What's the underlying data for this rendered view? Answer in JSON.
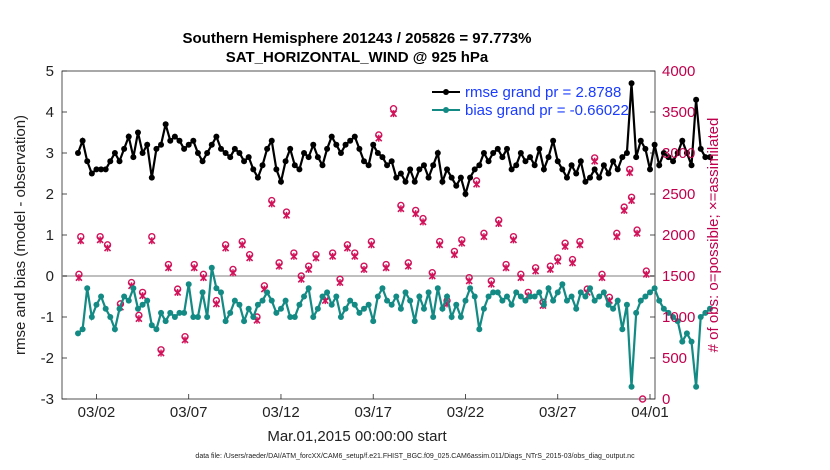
{
  "chart_data": {
    "type": "line",
    "title_line1": "Southern Hemisphere 201243 / 205826 = 97.773%",
    "title_line2": "SAT_HORIZONTAL_WIND @ 925 hPa",
    "xlabel": "Mar.01,2015 00:00:00 start",
    "ylabel_left": "rmse and bias (model - observation)",
    "ylabel_right": "# of obs: o=possible; ×=assimilated",
    "footnote": "data file: /Users/raeder/DAI/ATM_forcXX/CAM6_setup/f.e21.FHIST_BGC.f09_025.CAM6assim.011/Diags_NTrS_2015-03/obs_diag_output.nc",
    "x_ticks": [
      {
        "label": "03/02",
        "day": 2
      },
      {
        "label": "03/07",
        "day": 7
      },
      {
        "label": "03/12",
        "day": 12
      },
      {
        "label": "03/17",
        "day": 17
      },
      {
        "label": "03/22",
        "day": 22
      },
      {
        "label": "03/27",
        "day": 27
      },
      {
        "label": "04/01",
        "day": 32
      }
    ],
    "xlim": [
      1,
      32
    ],
    "ylim_left": [
      -3,
      5
    ],
    "ylim_right": [
      0,
      4000
    ],
    "y_ticks_left": [
      "-3",
      "-2",
      "-1",
      "0",
      "1",
      "2",
      "3",
      "4",
      "5"
    ],
    "y_ticks_right": [
      "0",
      "500",
      "1000",
      "1500",
      "2000",
      "2500",
      "3000",
      "3500",
      "4000"
    ],
    "colors": {
      "rmse": "#000000",
      "bias": "#138a84",
      "obs": "#d1135a",
      "zero_line": "#bfbfbf",
      "legend_text": "#1a3cff"
    },
    "series": [
      {
        "name": "rmse grand pr = 2.8788",
        "start_day": 1.0,
        "step_days": 0.25,
        "values": [
          3.0,
          3.3,
          2.8,
          2.5,
          2.6,
          2.6,
          2.6,
          2.8,
          3.0,
          2.8,
          3.1,
          3.4,
          2.9,
          3.5,
          3.0,
          3.2,
          2.4,
          3.1,
          3.2,
          3.7,
          3.3,
          3.4,
          3.3,
          3.1,
          3.2,
          3.3,
          3.0,
          2.8,
          3.0,
          3.2,
          3.4,
          3.1,
          3.0,
          2.9,
          3.1,
          3.0,
          2.8,
          2.9,
          2.6,
          2.4,
          2.7,
          3.1,
          3.3,
          2.6,
          2.3,
          2.8,
          3.1,
          2.7,
          2.6,
          3.0,
          2.9,
          3.2,
          2.9,
          2.7,
          3.1,
          3.4,
          3.2,
          3.0,
          3.2,
          3.3,
          3.4,
          3.1,
          2.8,
          2.7,
          3.2,
          3.0,
          2.9,
          2.7,
          2.8,
          2.4,
          2.5,
          2.3,
          2.6,
          2.3,
          2.6,
          2.7,
          2.4,
          2.7,
          3.0,
          2.3,
          2.6,
          2.4,
          2.2,
          2.4,
          2.0,
          2.4,
          2.6,
          2.7,
          3.0,
          2.8,
          3.0,
          3.1,
          2.9,
          3.1,
          2.6,
          2.7,
          3.0,
          2.8,
          2.9,
          2.7,
          3.1,
          2.6,
          2.9,
          3.3,
          2.8,
          2.6,
          2.4,
          2.7,
          2.5,
          2.8,
          2.3,
          2.4,
          2.6,
          2.4,
          2.7,
          2.5,
          2.8,
          2.6,
          2.9,
          3.0,
          4.7,
          2.9,
          3.3,
          3.1,
          2.6,
          3.2,
          2.7,
          3.0,
          2.9,
          2.8,
          3.0,
          3.3,
          3.0,
          2.7,
          4.3,
          3.1,
          2.9,
          2.9
        ]
      },
      {
        "name": "bias grand pr = -0.66022",
        "start_day": 1.0,
        "step_days": 0.25,
        "values": [
          -1.4,
          -1.3,
          -0.3,
          -1.0,
          -0.7,
          -0.5,
          -0.8,
          -1.0,
          -1.3,
          -0.8,
          -0.5,
          -0.6,
          -0.3,
          -0.8,
          -0.7,
          -0.6,
          -1.2,
          -1.3,
          -0.9,
          -1.1,
          -0.9,
          -1.0,
          -0.9,
          -0.9,
          -0.2,
          -1.0,
          -1.0,
          -0.4,
          -1.0,
          0.2,
          -0.3,
          -0.4,
          -1.1,
          -0.9,
          -0.6,
          -0.7,
          -1.1,
          -0.8,
          -1.0,
          -0.7,
          -0.6,
          -0.4,
          -0.6,
          -0.9,
          -0.8,
          -0.6,
          -1.0,
          -1.0,
          -0.7,
          -0.5,
          -0.3,
          -1.0,
          -0.8,
          -0.5,
          -0.4,
          -0.7,
          -0.5,
          -1.0,
          -0.8,
          -0.6,
          -0.7,
          -0.9,
          -0.8,
          -0.7,
          -1.1,
          -0.5,
          -0.3,
          -0.6,
          -0.7,
          -0.5,
          -0.8,
          -0.4,
          -0.6,
          -1.1,
          -0.5,
          -0.8,
          -0.4,
          -1.0,
          -0.3,
          -0.8,
          -0.5,
          -1.0,
          -0.7,
          -1.0,
          -0.6,
          -0.3,
          -0.5,
          -1.3,
          -0.8,
          -0.5,
          -0.4,
          -0.4,
          -0.6,
          -0.5,
          -0.7,
          -0.4,
          -0.5,
          -0.6,
          -0.5,
          -0.5,
          -0.4,
          -0.7,
          -0.3,
          -0.6,
          -0.4,
          -0.2,
          -0.6,
          -0.5,
          -0.8,
          -0.4,
          -0.5,
          -0.3,
          -0.6,
          -0.5,
          -0.4,
          -0.7,
          -0.8,
          -0.6,
          -1.3,
          -0.7,
          -2.7,
          -0.9,
          -0.6,
          -0.5,
          -0.4,
          -0.3,
          -0.6,
          -0.8,
          -0.9,
          -1.0,
          -1.1,
          -1.6,
          -1.4,
          -1.6,
          -2.7,
          -1.0,
          -0.9,
          -0.8
        ]
      }
    ],
    "obs_series": [
      {
        "name": "possible",
        "marker": "o",
        "points": [
          [
            1.05,
            1520
          ],
          [
            1.15,
            1980
          ],
          [
            2.2,
            1980
          ],
          [
            2.6,
            1880
          ],
          [
            3.3,
            1160
          ],
          [
            3.9,
            1420
          ],
          [
            4.3,
            1020
          ],
          [
            4.5,
            1300
          ],
          [
            5.0,
            1980
          ],
          [
            5.5,
            600
          ],
          [
            5.9,
            1640
          ],
          [
            6.4,
            1340
          ],
          [
            6.8,
            760
          ],
          [
            7.3,
            1640
          ],
          [
            7.8,
            1520
          ],
          [
            8.5,
            1200
          ],
          [
            9.0,
            1880
          ],
          [
            9.4,
            1580
          ],
          [
            9.9,
            1920
          ],
          [
            10.3,
            1760
          ],
          [
            10.7,
            1000
          ],
          [
            11.1,
            1380
          ],
          [
            11.5,
            2420
          ],
          [
            11.9,
            1660
          ],
          [
            12.3,
            2280
          ],
          [
            12.7,
            1780
          ],
          [
            13.1,
            1500
          ],
          [
            13.5,
            1620
          ],
          [
            13.9,
            1760
          ],
          [
            14.4,
            1240
          ],
          [
            14.8,
            1780
          ],
          [
            15.2,
            1460
          ],
          [
            15.6,
            1880
          ],
          [
            16.0,
            1780
          ],
          [
            16.5,
            1620
          ],
          [
            16.9,
            1920
          ],
          [
            17.3,
            3220
          ],
          [
            17.7,
            1640
          ],
          [
            18.1,
            3540
          ],
          [
            18.5,
            2360
          ],
          [
            18.9,
            1660
          ],
          [
            19.3,
            2300
          ],
          [
            19.7,
            2200
          ],
          [
            20.2,
            1540
          ],
          [
            20.6,
            1920
          ],
          [
            21.0,
            1200
          ],
          [
            21.4,
            1800
          ],
          [
            21.8,
            1940
          ],
          [
            22.2,
            1480
          ],
          [
            22.6,
            2660
          ],
          [
            23.0,
            2020
          ],
          [
            23.4,
            1440
          ],
          [
            23.8,
            2180
          ],
          [
            24.2,
            1640
          ],
          [
            24.6,
            1980
          ],
          [
            25.0,
            1520
          ],
          [
            25.4,
            1300
          ],
          [
            25.8,
            1600
          ],
          [
            26.2,
            1180
          ],
          [
            26.6,
            1620
          ],
          [
            27.0,
            1720
          ],
          [
            27.4,
            1900
          ],
          [
            27.8,
            1700
          ],
          [
            28.2,
            1920
          ],
          [
            28.6,
            1340
          ],
          [
            29.0,
            2940
          ],
          [
            29.4,
            1520
          ],
          [
            29.8,
            1240
          ],
          [
            30.2,
            2020
          ],
          [
            30.6,
            2340
          ],
          [
            31.0,
            2460
          ],
          [
            31.3,
            2060
          ],
          [
            31.6,
            0
          ],
          [
            31.8,
            1560
          ],
          [
            30.9,
            2800
          ]
        ]
      },
      {
        "name": "assimilated",
        "marker": "x",
        "points": [
          [
            1.05,
            1480
          ],
          [
            1.15,
            1930
          ],
          [
            2.2,
            1940
          ],
          [
            2.6,
            1840
          ],
          [
            3.3,
            1120
          ],
          [
            3.9,
            1380
          ],
          [
            4.3,
            980
          ],
          [
            4.5,
            1260
          ],
          [
            5.0,
            1930
          ],
          [
            5.5,
            560
          ],
          [
            5.9,
            1600
          ],
          [
            6.4,
            1300
          ],
          [
            6.8,
            720
          ],
          [
            7.3,
            1600
          ],
          [
            7.8,
            1480
          ],
          [
            8.5,
            1160
          ],
          [
            9.0,
            1840
          ],
          [
            9.4,
            1540
          ],
          [
            9.9,
            1880
          ],
          [
            10.3,
            1720
          ],
          [
            10.7,
            960
          ],
          [
            11.1,
            1340
          ],
          [
            11.5,
            2380
          ],
          [
            11.9,
            1620
          ],
          [
            12.3,
            2240
          ],
          [
            12.7,
            1740
          ],
          [
            13.1,
            1460
          ],
          [
            13.5,
            1580
          ],
          [
            13.9,
            1720
          ],
          [
            14.4,
            1200
          ],
          [
            14.8,
            1740
          ],
          [
            15.2,
            1420
          ],
          [
            15.6,
            1840
          ],
          [
            16.0,
            1740
          ],
          [
            16.5,
            1580
          ],
          [
            16.9,
            1880
          ],
          [
            17.3,
            3180
          ],
          [
            17.7,
            1600
          ],
          [
            18.1,
            3480
          ],
          [
            18.5,
            2320
          ],
          [
            18.9,
            1620
          ],
          [
            19.3,
            2260
          ],
          [
            19.7,
            2160
          ],
          [
            20.2,
            1500
          ],
          [
            20.6,
            1880
          ],
          [
            21.0,
            1160
          ],
          [
            21.4,
            1760
          ],
          [
            21.8,
            1900
          ],
          [
            22.2,
            1440
          ],
          [
            22.6,
            2620
          ],
          [
            23.0,
            1980
          ],
          [
            23.4,
            1400
          ],
          [
            23.8,
            2140
          ],
          [
            24.2,
            1600
          ],
          [
            24.6,
            1940
          ],
          [
            25.0,
            1480
          ],
          [
            25.4,
            1260
          ],
          [
            25.8,
            1560
          ],
          [
            26.2,
            1140
          ],
          [
            26.6,
            1580
          ],
          [
            27.0,
            1680
          ],
          [
            27.4,
            1860
          ],
          [
            27.8,
            1660
          ],
          [
            28.2,
            1880
          ],
          [
            28.6,
            1300
          ],
          [
            29.0,
            2900
          ],
          [
            29.4,
            1480
          ],
          [
            29.8,
            1200
          ],
          [
            30.2,
            1980
          ],
          [
            30.6,
            2300
          ],
          [
            31.0,
            2420
          ],
          [
            31.3,
            2020
          ],
          [
            31.8,
            1520
          ],
          [
            30.9,
            2760
          ]
        ]
      }
    ]
  }
}
